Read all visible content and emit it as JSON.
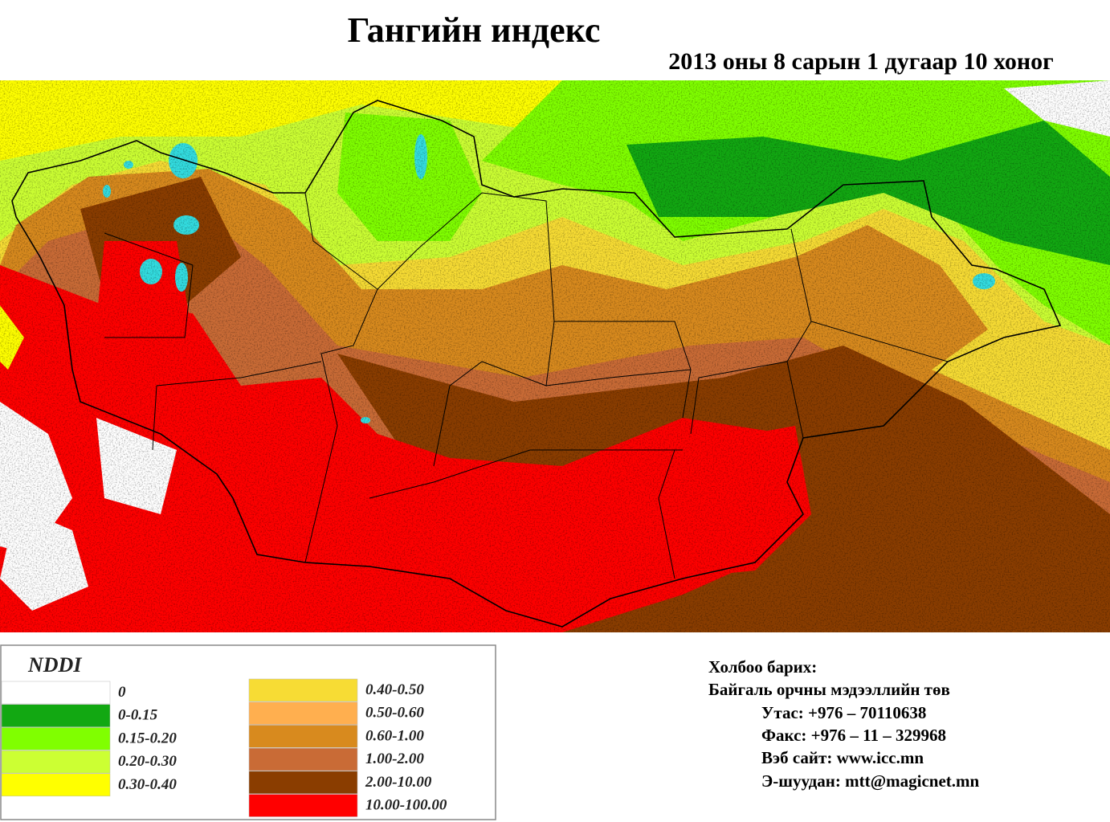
{
  "title": "Гангийн индекс",
  "subtitle": "2013 оны 8 сарын 1 дугаар 10 хоног",
  "legend": {
    "title": "NDDI",
    "items": [
      {
        "label": "0",
        "color": "#ffffff"
      },
      {
        "label": "0-0.15",
        "color": "#12a812"
      },
      {
        "label": "0.15-0.20",
        "color": "#80ff00"
      },
      {
        "label": "0.20-0.30",
        "color": "#ccff33"
      },
      {
        "label": "0.30-0.40",
        "color": "#ffff00"
      },
      {
        "label": "0.40-0.50",
        "color": "#f7dc34"
      },
      {
        "label": "0.50-0.60",
        "color": "#ffaf4f"
      },
      {
        "label": "0.60-1.00",
        "color": "#d88a1e"
      },
      {
        "label": "1.00-2.00",
        "color": "#c96b36"
      },
      {
        "label": "2.00-10.00",
        "color": "#8a3d00"
      },
      {
        "label": "10.00-100.00",
        "color": "#ff0000"
      }
    ]
  },
  "contact": {
    "heading": "Холбоо барих:",
    "organization": "Байгаль орчны мэдээллийн төв",
    "lines": [
      "Утас: +976 – 70110638",
      "Факс: +976 – 11 – 329968",
      "Вэб сайт: www.icc.mn",
      "Э-шуудан: mtt@magicnet.mn"
    ]
  }
}
